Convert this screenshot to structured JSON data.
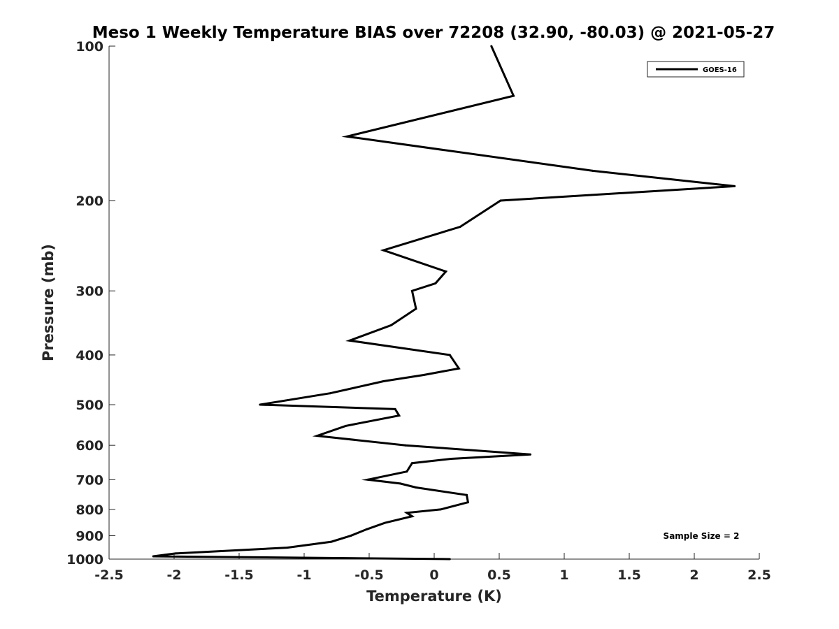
{
  "chart_data": {
    "type": "line",
    "title": "Meso 1 Weekly Temperature BIAS over 72208 (32.90, -80.03) @ 2021-05-27",
    "xlabel": "Temperature (K)",
    "ylabel": "Pressure (mb)",
    "xlim": [
      -2.5,
      2.5
    ],
    "ylim": [
      100,
      1000
    ],
    "yscale": "log",
    "yreversed": true,
    "grid": false,
    "legend_position": "top-right",
    "x_ticks": [
      "-2.5",
      "-2",
      "-1.5",
      "-1",
      "-0.5",
      "0",
      "0.5",
      "1",
      "1.5",
      "2",
      "2.5"
    ],
    "y_ticks": [
      "100",
      "200",
      "300",
      "400",
      "500",
      "600",
      "700",
      "800",
      "900",
      "1000"
    ],
    "series": [
      {
        "name": "GOES-16",
        "color": "#000000",
        "points": [
          {
            "x": 0.44,
            "y": 100
          },
          {
            "x": 0.61,
            "y": 125
          },
          {
            "x": -0.67,
            "y": 150
          },
          {
            "x": 1.22,
            "y": 175
          },
          {
            "x": 2.31,
            "y": 187.5
          },
          {
            "x": 0.51,
            "y": 200
          },
          {
            "x": 0.2,
            "y": 225
          },
          {
            "x": -0.39,
            "y": 250
          },
          {
            "x": 0.09,
            "y": 275
          },
          {
            "x": 0.01,
            "y": 290
          },
          {
            "x": -0.17,
            "y": 300
          },
          {
            "x": -0.14,
            "y": 325
          },
          {
            "x": -0.33,
            "y": 350
          },
          {
            "x": -0.65,
            "y": 375
          },
          {
            "x": 0.12,
            "y": 400
          },
          {
            "x": 0.19,
            "y": 425
          },
          {
            "x": -0.08,
            "y": 437.5
          },
          {
            "x": -0.39,
            "y": 450
          },
          {
            "x": -0.8,
            "y": 475
          },
          {
            "x": -1.34,
            "y": 500
          },
          {
            "x": -0.3,
            "y": 510
          },
          {
            "x": -0.27,
            "y": 525
          },
          {
            "x": -0.68,
            "y": 550
          },
          {
            "x": -0.9,
            "y": 575
          },
          {
            "x": -0.22,
            "y": 600
          },
          {
            "x": 0.74,
            "y": 625
          },
          {
            "x": 0.13,
            "y": 637.5
          },
          {
            "x": -0.17,
            "y": 650
          },
          {
            "x": -0.21,
            "y": 675
          },
          {
            "x": -0.51,
            "y": 700
          },
          {
            "x": -0.26,
            "y": 712.5
          },
          {
            "x": -0.14,
            "y": 725
          },
          {
            "x": 0.25,
            "y": 750
          },
          {
            "x": 0.26,
            "y": 775
          },
          {
            "x": 0.05,
            "y": 800
          },
          {
            "x": -0.21,
            "y": 812.5
          },
          {
            "x": -0.17,
            "y": 825
          },
          {
            "x": -0.38,
            "y": 850
          },
          {
            "x": -0.52,
            "y": 875
          },
          {
            "x": -0.64,
            "y": 900
          },
          {
            "x": -0.79,
            "y": 925
          },
          {
            "x": -1.13,
            "y": 950
          },
          {
            "x": -1.99,
            "y": 975
          },
          {
            "x": -2.16,
            "y": 987.5
          },
          {
            "x": 0.12,
            "y": 1000
          }
        ]
      }
    ],
    "annotation": "Sample Size = 2"
  }
}
